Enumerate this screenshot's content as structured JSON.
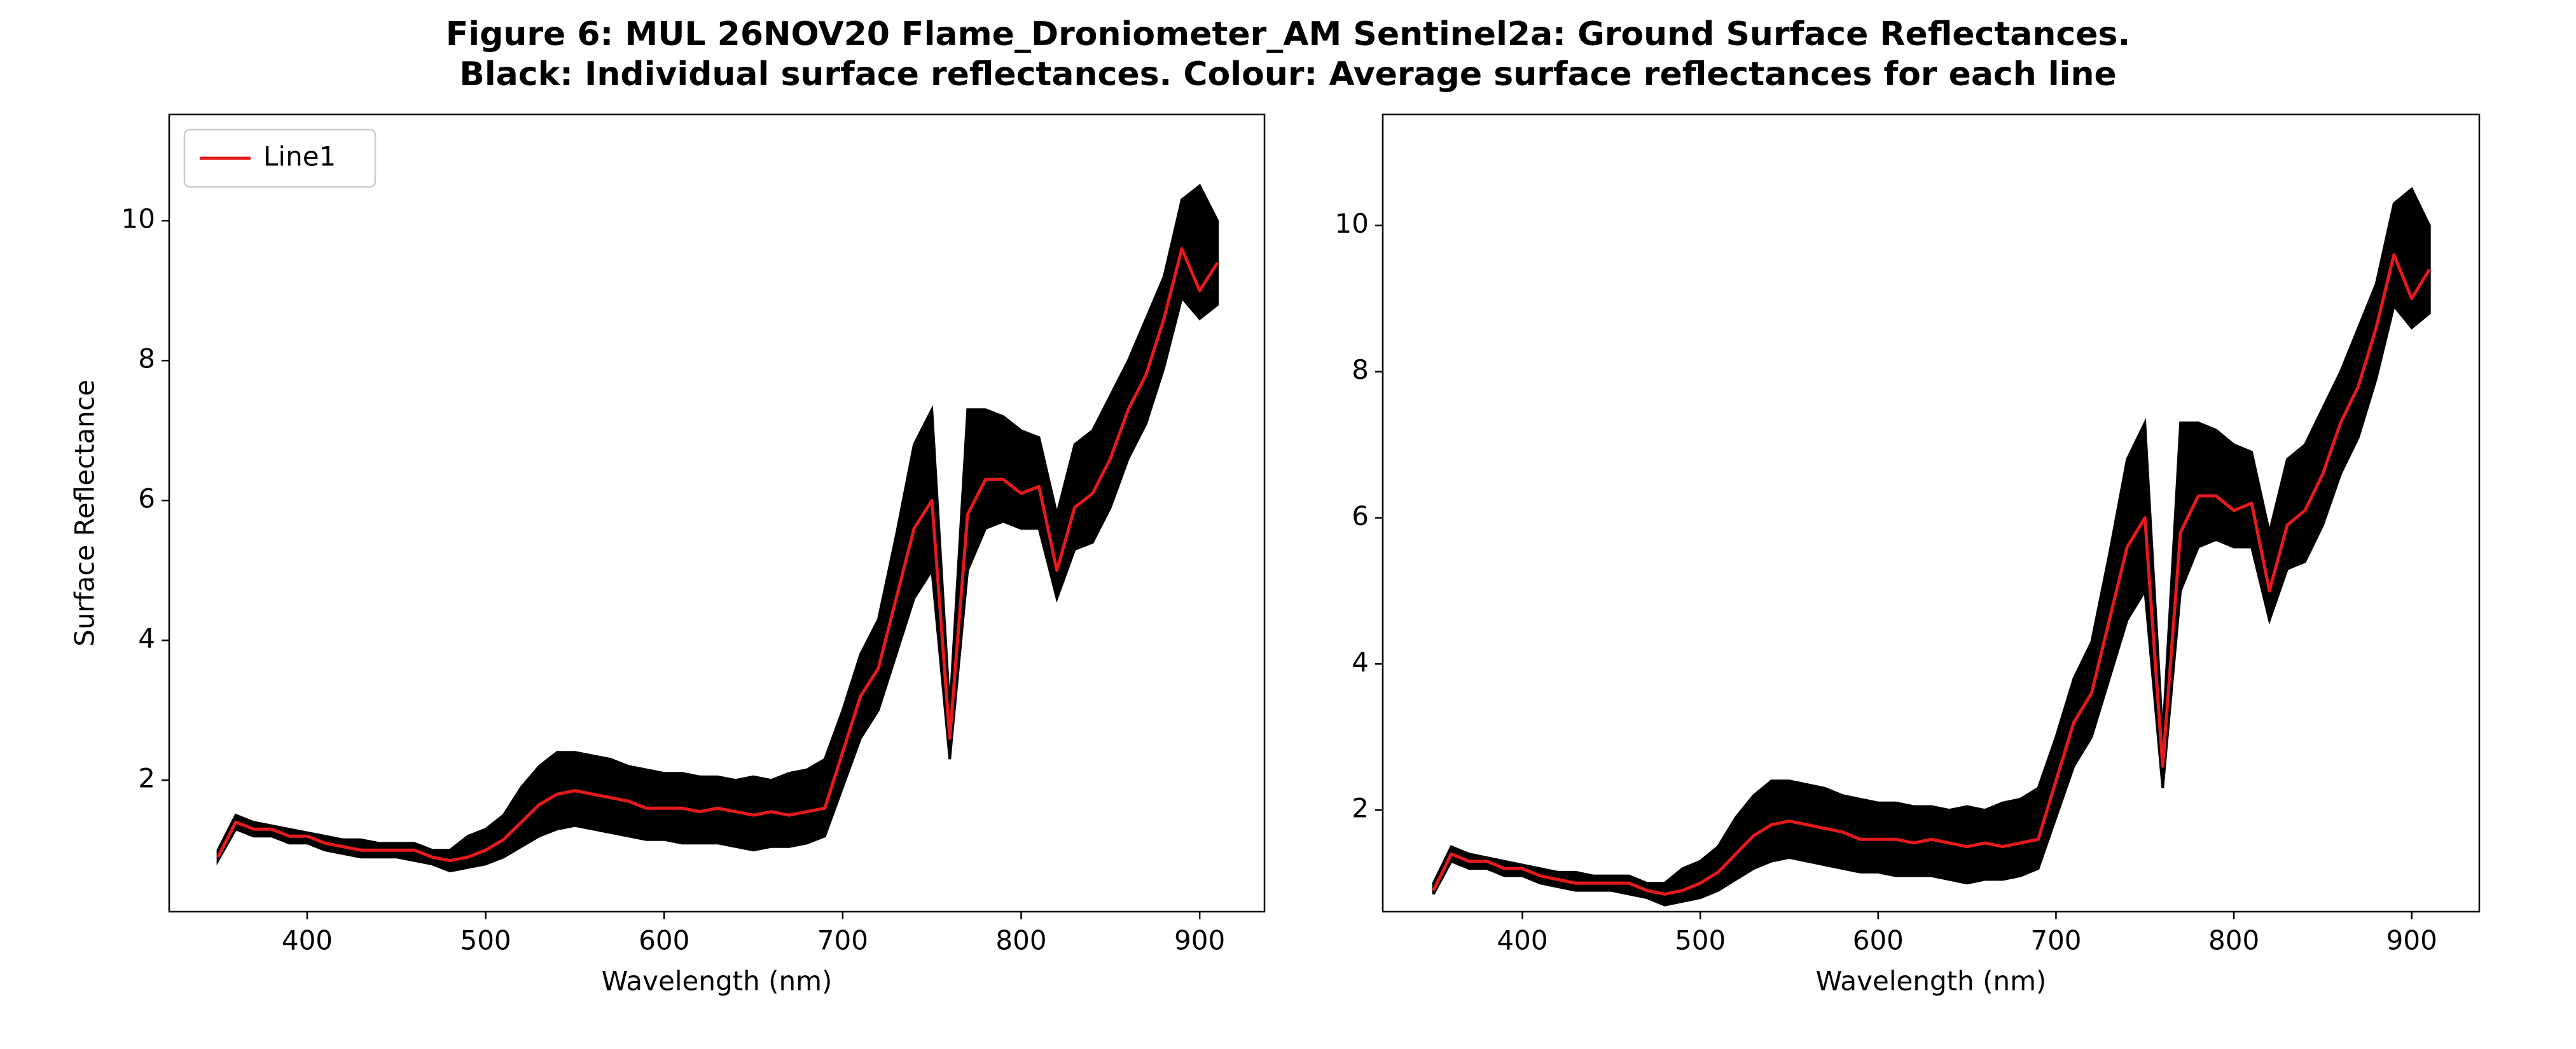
{
  "title": [
    "Figure 6: MUL 26NOV20 Flame_Droniometer_AM Sentinel2a: Ground Surface Reflectances.",
    "Black: Individual surface reflectances. Colour: Average surface reflectances for each line"
  ],
  "chart_data": [
    {
      "type": "line",
      "xlabel": "Wavelength (nm)",
      "ylabel": "Surface Reflectance",
      "legend": "upper left",
      "xlim": [
        322.7,
        936.3
      ],
      "ylim": [
        0.12,
        11.52
      ],
      "xticks": [
        400,
        500,
        600,
        700,
        800,
        900
      ],
      "yticks": [
        2,
        4,
        6,
        8,
        10
      ],
      "x": [
        350,
        360,
        370,
        380,
        390,
        400,
        410,
        420,
        430,
        440,
        450,
        460,
        470,
        480,
        490,
        500,
        510,
        520,
        530,
        540,
        550,
        560,
        570,
        580,
        590,
        600,
        610,
        620,
        630,
        640,
        650,
        660,
        670,
        680,
        690,
        700,
        710,
        720,
        730,
        740,
        750,
        760,
        770,
        780,
        790,
        800,
        810,
        820,
        830,
        840,
        850,
        860,
        870,
        880,
        890,
        900,
        910
      ],
      "band": {
        "color": "#000000",
        "upper": [
          1.0,
          1.5,
          1.4,
          1.35,
          1.3,
          1.25,
          1.2,
          1.15,
          1.15,
          1.1,
          1.1,
          1.1,
          1.0,
          1.0,
          1.2,
          1.3,
          1.5,
          1.9,
          2.2,
          2.4,
          2.4,
          2.35,
          2.3,
          2.2,
          2.15,
          2.1,
          2.1,
          2.05,
          2.05,
          2.0,
          2.05,
          2.0,
          2.1,
          2.15,
          2.3,
          3.0,
          3.8,
          4.3,
          5.5,
          6.8,
          7.3,
          3.0,
          7.3,
          7.3,
          7.2,
          7.0,
          6.9,
          5.8,
          6.8,
          7.0,
          7.5,
          8.0,
          8.6,
          9.2,
          10.3,
          10.5,
          10.0
        ],
        "lower": [
          0.85,
          1.3,
          1.2,
          1.2,
          1.1,
          1.1,
          1.0,
          0.95,
          0.9,
          0.9,
          0.9,
          0.85,
          0.8,
          0.7,
          0.75,
          0.8,
          0.9,
          1.05,
          1.2,
          1.3,
          1.35,
          1.3,
          1.25,
          1.2,
          1.15,
          1.15,
          1.1,
          1.1,
          1.1,
          1.05,
          1.0,
          1.05,
          1.05,
          1.1,
          1.2,
          1.9,
          2.6,
          3.0,
          3.8,
          4.6,
          5.0,
          2.3,
          5.0,
          5.6,
          5.7,
          5.6,
          5.6,
          4.6,
          5.3,
          5.4,
          5.9,
          6.6,
          7.1,
          7.9,
          8.9,
          8.6,
          8.8
        ]
      },
      "series": [
        {
          "name": "Line1",
          "color": "#e41a1c",
          "values": [
            0.9,
            1.4,
            1.3,
            1.3,
            1.2,
            1.2,
            1.1,
            1.05,
            1.0,
            1.0,
            1.0,
            1.0,
            0.9,
            0.85,
            0.9,
            1.0,
            1.15,
            1.4,
            1.65,
            1.8,
            1.85,
            1.8,
            1.75,
            1.7,
            1.6,
            1.6,
            1.6,
            1.55,
            1.6,
            1.55,
            1.5,
            1.55,
            1.5,
            1.55,
            1.6,
            2.4,
            3.2,
            3.6,
            4.6,
            5.6,
            6.0,
            2.6,
            5.8,
            6.3,
            6.3,
            6.1,
            6.2,
            5.0,
            5.9,
            6.1,
            6.6,
            7.3,
            7.8,
            8.6,
            9.6,
            9.0,
            9.4
          ]
        }
      ]
    },
    {
      "type": "line",
      "xlabel": "Wavelength (nm)",
      "xlim": [
        321.5,
        938
      ],
      "ylim": [
        0.61,
        11.52
      ],
      "xticks": [
        400,
        500,
        600,
        700,
        800,
        900
      ],
      "yticks": [
        2,
        4,
        6,
        8,
        10
      ],
      "x": [
        350,
        360,
        370,
        380,
        390,
        400,
        410,
        420,
        430,
        440,
        450,
        460,
        470,
        480,
        490,
        500,
        510,
        520,
        530,
        540,
        550,
        560,
        570,
        580,
        590,
        600,
        610,
        620,
        630,
        640,
        650,
        660,
        670,
        680,
        690,
        700,
        710,
        720,
        730,
        740,
        750,
        760,
        770,
        780,
        790,
        800,
        810,
        820,
        830,
        840,
        850,
        860,
        870,
        880,
        890,
        900,
        910
      ],
      "band": {
        "color": "#000000",
        "upper": [
          1.0,
          1.5,
          1.4,
          1.35,
          1.3,
          1.25,
          1.2,
          1.15,
          1.15,
          1.1,
          1.1,
          1.1,
          1.0,
          1.0,
          1.2,
          1.3,
          1.5,
          1.9,
          2.2,
          2.4,
          2.4,
          2.35,
          2.3,
          2.2,
          2.15,
          2.1,
          2.1,
          2.05,
          2.05,
          2.0,
          2.05,
          2.0,
          2.1,
          2.15,
          2.3,
          3.0,
          3.8,
          4.3,
          5.5,
          6.8,
          7.3,
          3.0,
          7.3,
          7.3,
          7.2,
          7.0,
          6.9,
          5.8,
          6.8,
          7.0,
          7.5,
          8.0,
          8.6,
          9.2,
          10.3,
          10.5,
          10.0
        ],
        "lower": [
          0.85,
          1.3,
          1.2,
          1.2,
          1.1,
          1.1,
          1.0,
          0.95,
          0.9,
          0.9,
          0.9,
          0.85,
          0.8,
          0.7,
          0.75,
          0.8,
          0.9,
          1.05,
          1.2,
          1.3,
          1.35,
          1.3,
          1.25,
          1.2,
          1.15,
          1.15,
          1.1,
          1.1,
          1.1,
          1.05,
          1.0,
          1.05,
          1.05,
          1.1,
          1.2,
          1.9,
          2.6,
          3.0,
          3.8,
          4.6,
          5.0,
          2.3,
          5.0,
          5.6,
          5.7,
          5.6,
          5.6,
          4.6,
          5.3,
          5.4,
          5.9,
          6.6,
          7.1,
          7.9,
          8.9,
          8.6,
          8.8
        ]
      },
      "series": [
        {
          "color": "#e41a1c",
          "values": [
            0.9,
            1.4,
            1.3,
            1.3,
            1.2,
            1.2,
            1.1,
            1.05,
            1.0,
            1.0,
            1.0,
            1.0,
            0.9,
            0.85,
            0.9,
            1.0,
            1.15,
            1.4,
            1.65,
            1.8,
            1.85,
            1.8,
            1.75,
            1.7,
            1.6,
            1.6,
            1.6,
            1.55,
            1.6,
            1.55,
            1.5,
            1.55,
            1.5,
            1.55,
            1.6,
            2.4,
            3.2,
            3.6,
            4.6,
            5.6,
            6.0,
            2.6,
            5.8,
            6.3,
            6.3,
            6.1,
            6.2,
            5.0,
            5.9,
            6.1,
            6.6,
            7.3,
            7.8,
            8.6,
            9.6,
            9.0,
            9.4
          ]
        }
      ]
    }
  ]
}
